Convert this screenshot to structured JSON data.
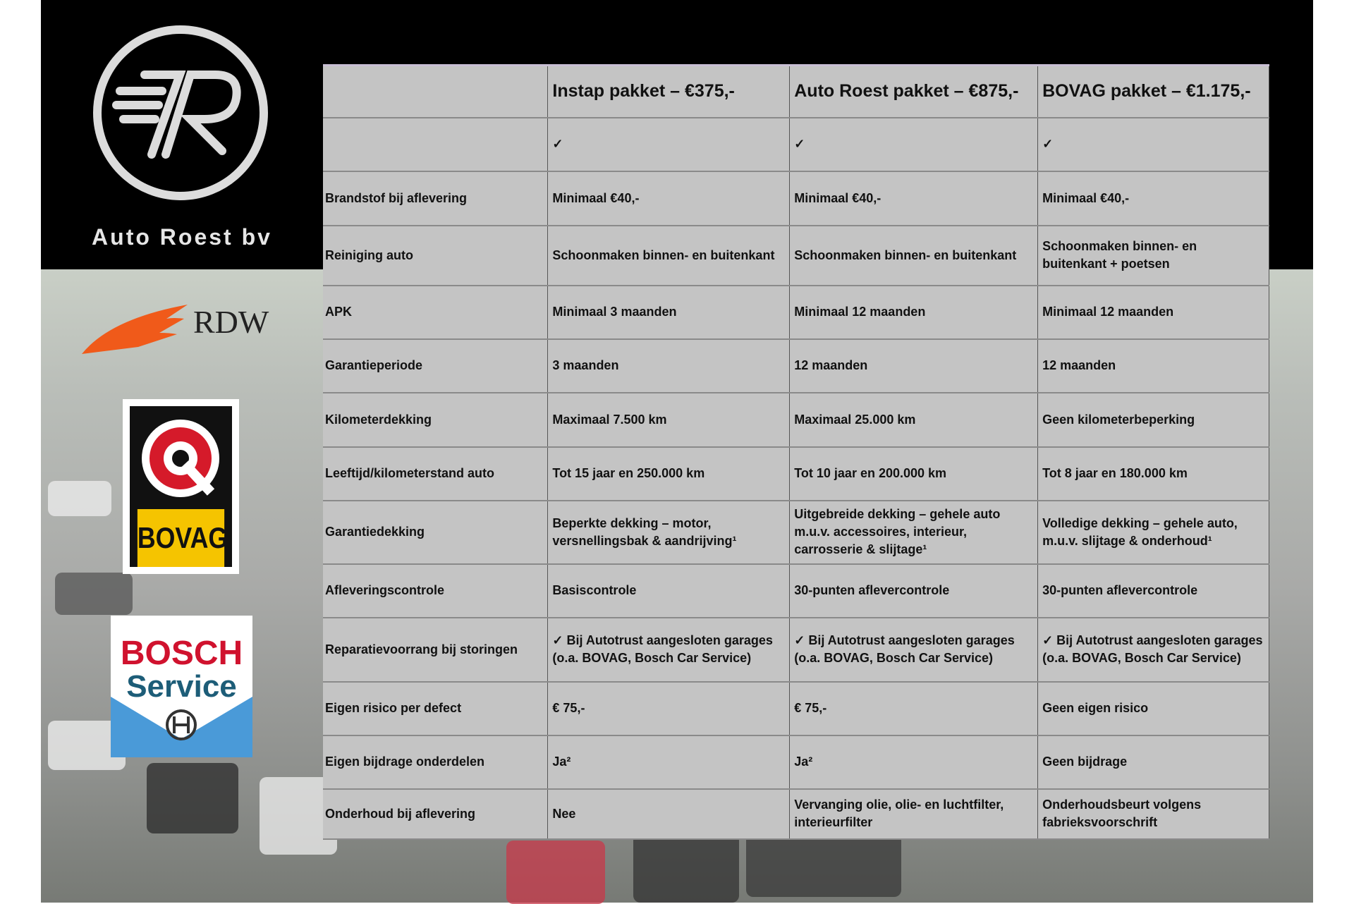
{
  "brand": {
    "name": "Auto Roest bv"
  },
  "logos": [
    "RDW",
    "BOVAG",
    "BOSCH Service"
  ],
  "logo_text": {
    "rdw": "RDW",
    "bovag": "BOVAG",
    "bosch_1": "BOSCH",
    "bosch_2": "Service"
  },
  "table": {
    "headers": [
      "",
      "Instap pakket – €375,-",
      "Auto Roest pakket – €875,-",
      "BOVAG pakket – €1.175,-"
    ],
    "rows": [
      [
        "",
        "✓",
        "✓",
        "✓"
      ],
      [
        "Brandstof bij aflevering",
        "Minimaal €40,-",
        "Minimaal €40,-",
        "Minimaal €40,-"
      ],
      [
        "Reiniging auto",
        "Schoonmaken binnen- en buitenkant",
        "Schoonmaken binnen- en buitenkant",
        "Schoonmaken binnen- en buitenkant + poetsen"
      ],
      [
        "APK",
        "Minimaal 3 maanden",
        "Minimaal 12 maanden",
        "Minimaal 12 maanden"
      ],
      [
        "Garantieperiode",
        "3 maanden",
        "12 maanden",
        "12 maanden"
      ],
      [
        "Kilometerdekking",
        "Maximaal 7.500 km",
        "Maximaal 25.000 km",
        "Geen kilometerbeperking"
      ],
      [
        "Leeftijd/kilometerstand auto",
        "Tot 15 jaar en 250.000 km",
        "Tot 10 jaar en 200.000 km",
        "Tot 8 jaar en 180.000 km"
      ],
      [
        "Garantiedekking",
        "Beperkte dekking – motor, versnellingsbak & aandrijving¹",
        "Uitgebreide dekking – gehele auto m.u.v. accessoires, interieur, carrosserie & slijtage¹",
        "Volledige dekking – gehele auto, m.u.v. slijtage & onderhoud¹"
      ],
      [
        "Afleveringscontrole",
        "Basiscontrole",
        "30-punten aflevercontrole",
        "30-punten aflevercontrole"
      ],
      [
        "Reparatievoorrang bij storingen",
        "✓ Bij Autotrust aangesloten garages (o.a. BOVAG, Bosch Car Service)",
        "✓ Bij Autotrust aangesloten garages (o.a. BOVAG, Bosch Car Service)",
        "✓ Bij Autotrust aangesloten garages (o.a. BOVAG, Bosch Car Service)"
      ],
      [
        "Eigen risico per defect",
        "€ 75,-",
        "€ 75,-",
        "Geen eigen risico"
      ],
      [
        "Eigen bijdrage onderdelen",
        "Ja²",
        "Ja²",
        "Geen bijdrage"
      ],
      [
        "Onderhoud bij aflevering",
        "Nee",
        "Vervanging olie, olie- en luchtfilter, interieurfilter",
        "Onderhoudsbeurt volgens fabrieksvoorschrift"
      ]
    ]
  }
}
